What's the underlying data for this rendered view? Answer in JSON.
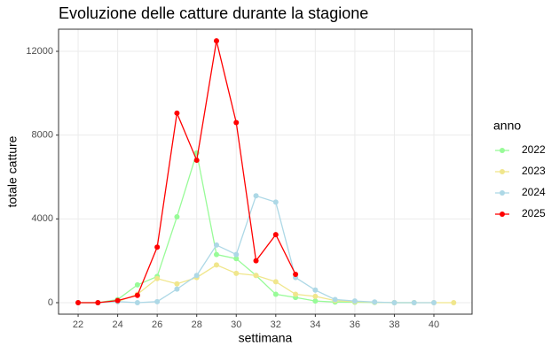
{
  "chart_data": {
    "type": "line",
    "title": "Evoluzione delle catture durante la stagione",
    "x_label": "settimana",
    "y_label": "totale catture",
    "legend_title": "anno",
    "legend_position": "right",
    "grid": true,
    "x": [
      22,
      23,
      24,
      25,
      26,
      27,
      28,
      29,
      30,
      31,
      32,
      33,
      34,
      35,
      36,
      37,
      38,
      39,
      40,
      41
    ],
    "xlim": [
      21.01,
      41.93
    ],
    "xticks": [
      22,
      24,
      26,
      28,
      30,
      32,
      34,
      36,
      38,
      40
    ],
    "ylim": [
      -549,
      13056
    ],
    "yticks": [
      0,
      4000,
      8000,
      12000
    ],
    "series": [
      {
        "name": "2022",
        "color": "#98FB98",
        "values": [
          0,
          0,
          150,
          850,
          1250,
          4100,
          7150,
          2300,
          2100,
          1300,
          400,
          250,
          80,
          30,
          20,
          10,
          0,
          0,
          null,
          null
        ]
      },
      {
        "name": "2023",
        "color": "#F0E68C",
        "values": [
          0,
          0,
          50,
          400,
          1150,
          900,
          1200,
          1800,
          1400,
          1300,
          1000,
          400,
          300,
          100,
          50,
          20,
          0,
          0,
          0,
          0
        ]
      },
      {
        "name": "2024",
        "color": "#ADD8E6",
        "values": [
          0,
          0,
          50,
          0,
          50,
          650,
          1300,
          2750,
          2300,
          5100,
          4800,
          1200,
          600,
          150,
          80,
          30,
          0,
          0,
          0,
          null
        ]
      },
      {
        "name": "2025",
        "color": "#FF0000",
        "values": [
          0,
          0,
          100,
          350,
          2650,
          9050,
          6800,
          12500,
          8600,
          2000,
          3250,
          1350,
          null,
          null,
          null,
          null,
          null,
          null,
          null,
          null
        ]
      }
    ]
  }
}
